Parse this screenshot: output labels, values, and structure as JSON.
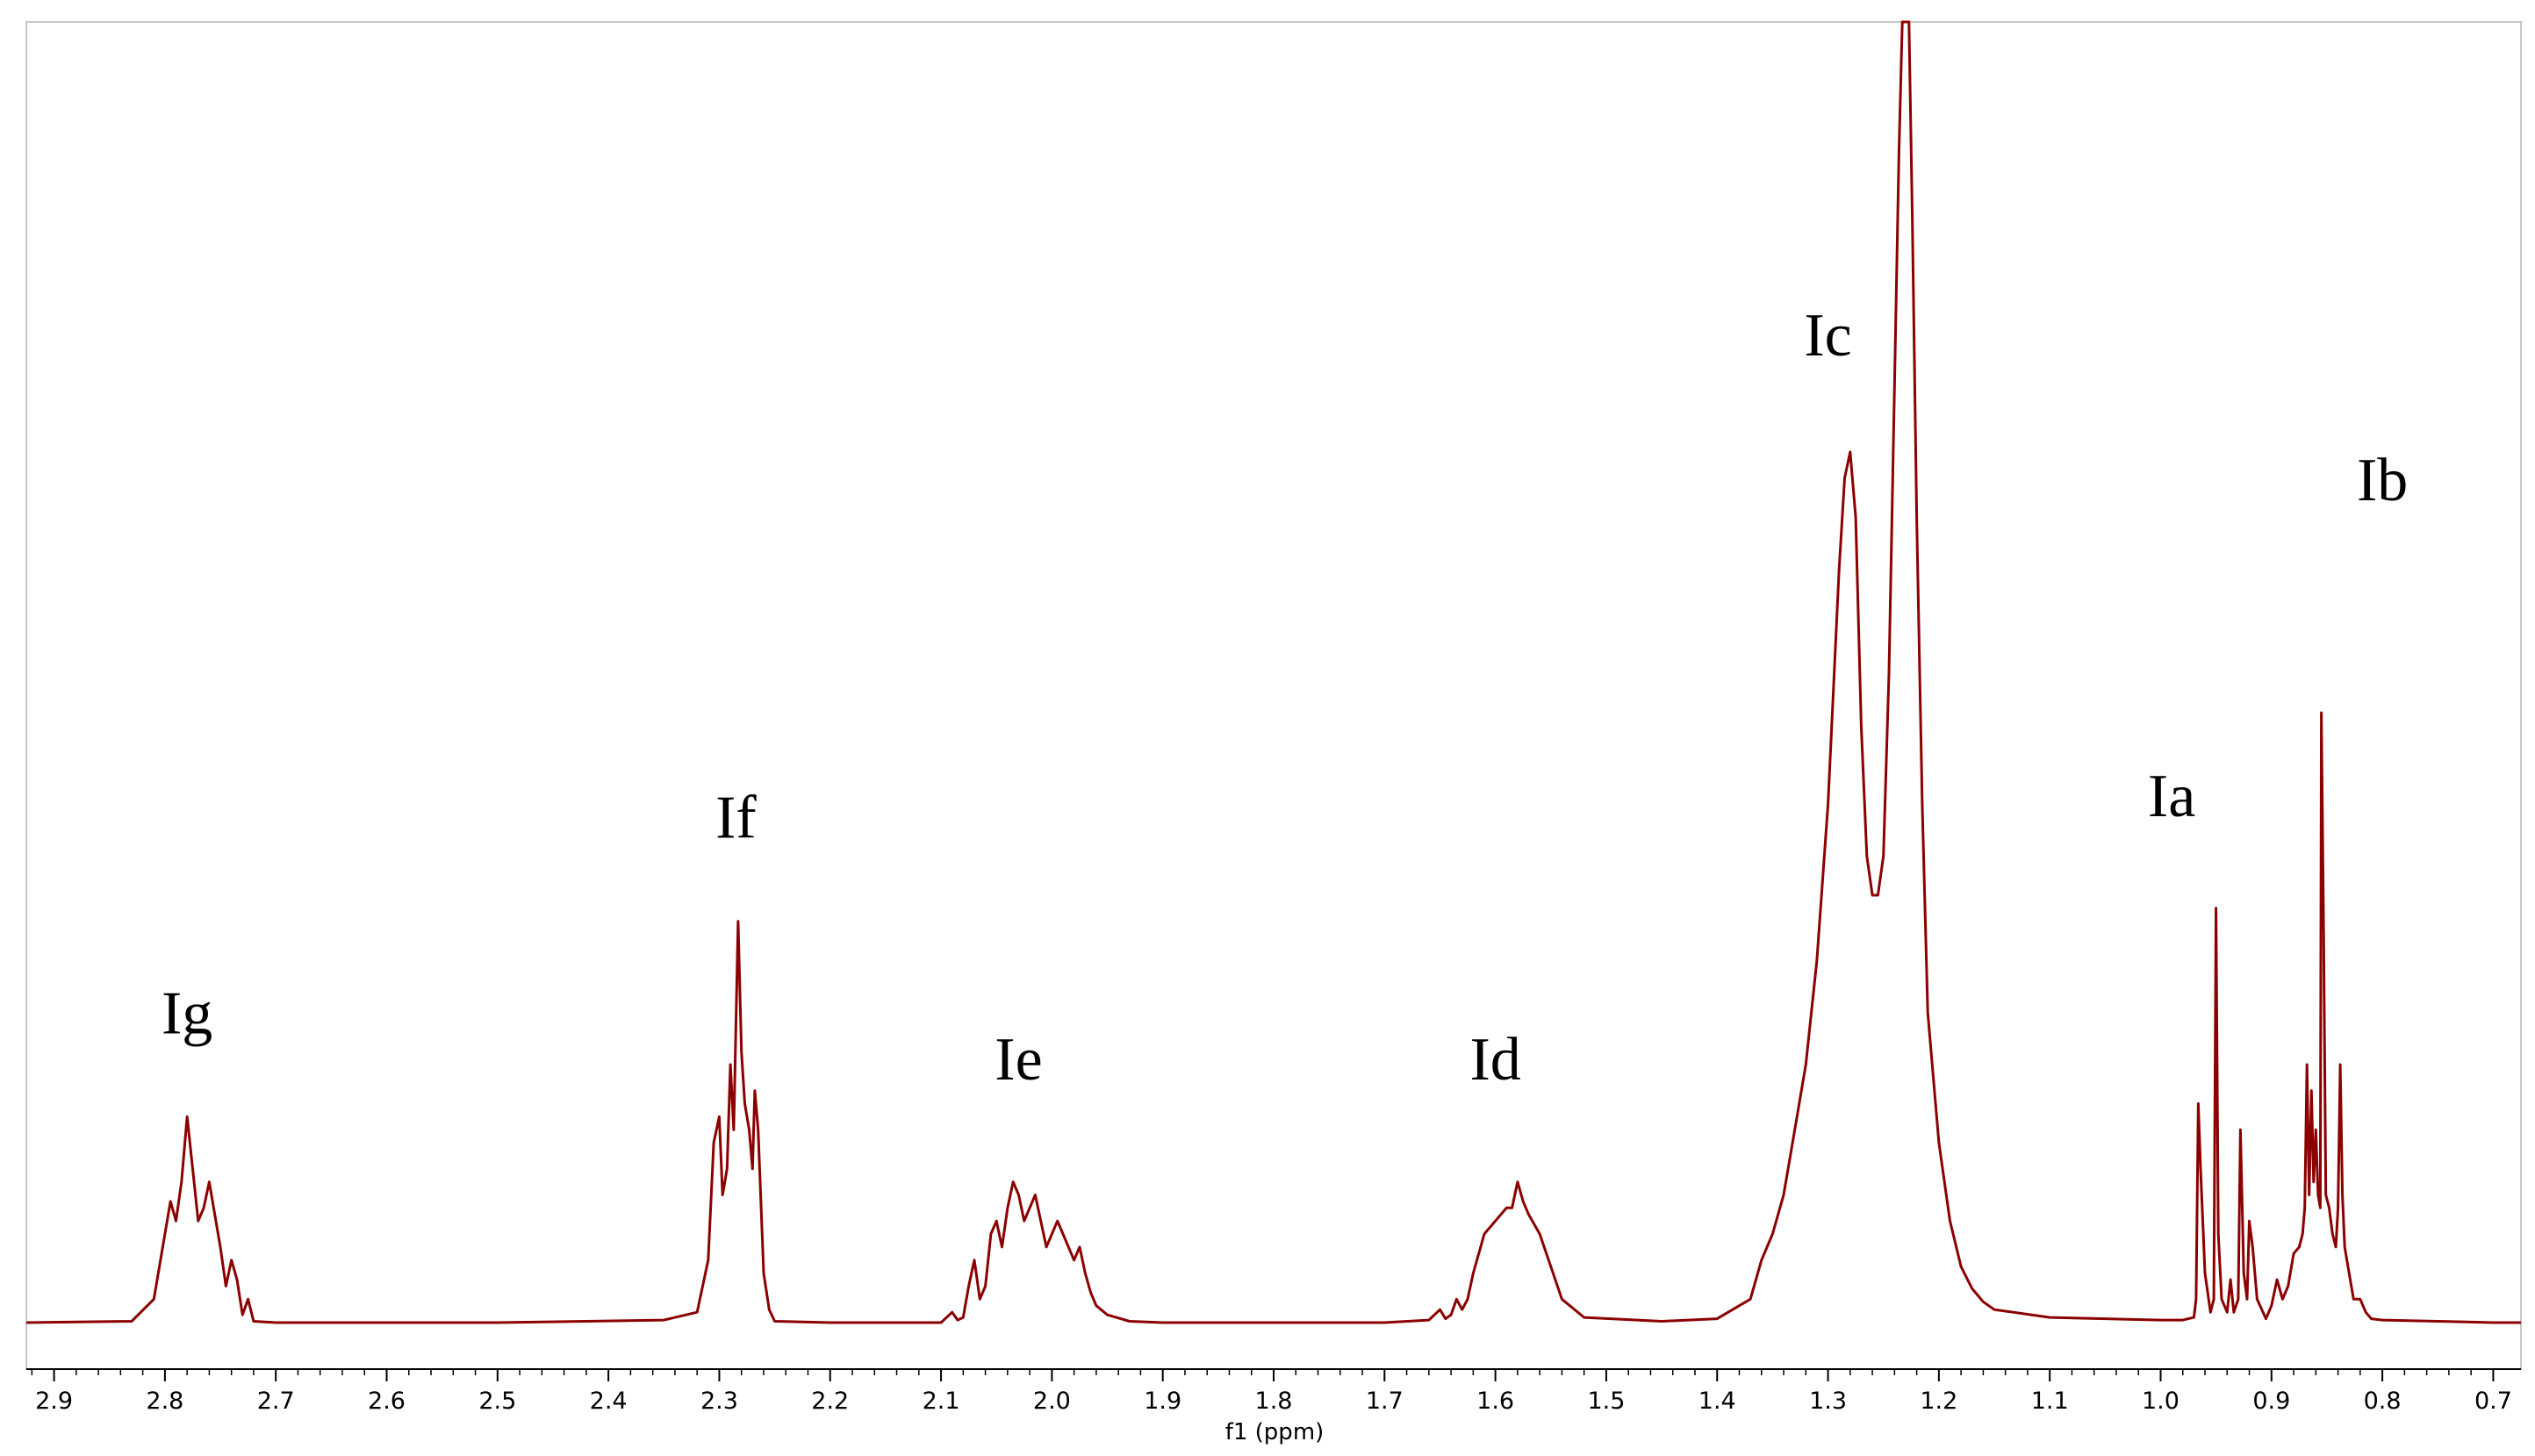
{
  "chart_data": {
    "type": "line",
    "xlabel": "f1 (ppm)",
    "ylabel": "",
    "x_axis_reversed": true,
    "xlim": [
      2.925,
      0.675
    ],
    "x_tick_labels": [
      "2.9",
      "2.8",
      "2.7",
      "2.6",
      "2.5",
      "2.4",
      "2.3",
      "2.2",
      "2.1",
      "2.0",
      "1.9",
      "1.8",
      "1.7",
      "1.6",
      "1.5",
      "1.4",
      "1.3",
      "1.2",
      "1.1",
      "1.0",
      "0.9",
      "0.8",
      "0.7"
    ],
    "x_ticks": [
      2.9,
      2.8,
      2.7,
      2.6,
      2.5,
      2.4,
      2.3,
      2.2,
      2.1,
      2.0,
      1.9,
      1.8,
      1.7,
      1.6,
      1.5,
      1.4,
      1.3,
      1.2,
      1.1,
      1.0,
      0.9,
      0.8,
      0.7
    ],
    "grid": false,
    "line_color": "#8b0000",
    "series": [
      {
        "values_note": "relative intensity (0..1) at chemical shift (ppm)",
        "x": [
          2.925,
          2.83,
          2.81,
          2.8,
          2.795,
          2.79,
          2.785,
          2.78,
          2.775,
          2.77,
          2.765,
          2.76,
          2.75,
          2.745,
          2.74,
          2.735,
          2.73,
          2.725,
          2.72,
          2.7,
          2.5,
          2.35,
          2.32,
          2.31,
          2.305,
          2.3,
          2.297,
          2.293,
          2.29,
          2.287,
          2.283,
          2.28,
          2.277,
          2.273,
          2.27,
          2.268,
          2.265,
          2.26,
          2.255,
          2.25,
          2.2,
          2.1,
          2.09,
          2.085,
          2.08,
          2.075,
          2.07,
          2.065,
          2.06,
          2.055,
          2.05,
          2.045,
          2.04,
          2.035,
          2.03,
          2.025,
          2.02,
          2.015,
          2.01,
          2.005,
          2.0,
          1.995,
          1.99,
          1.985,
          1.98,
          1.975,
          1.97,
          1.965,
          1.96,
          1.95,
          1.93,
          1.9,
          1.7,
          1.66,
          1.65,
          1.645,
          1.64,
          1.635,
          1.63,
          1.625,
          1.62,
          1.61,
          1.6,
          1.59,
          1.585,
          1.58,
          1.575,
          1.57,
          1.56,
          1.55,
          1.54,
          1.52,
          1.45,
          1.4,
          1.37,
          1.36,
          1.35,
          1.34,
          1.33,
          1.32,
          1.31,
          1.3,
          1.29,
          1.285,
          1.28,
          1.275,
          1.27,
          1.265,
          1.26,
          1.255,
          1.25,
          1.245,
          1.24,
          1.236,
          1.233,
          1.23,
          1.227,
          1.224,
          1.22,
          1.215,
          1.21,
          1.2,
          1.19,
          1.18,
          1.17,
          1.16,
          1.15,
          1.1,
          1.05,
          1.0,
          0.98,
          0.97,
          0.968,
          0.966,
          0.964,
          0.96,
          0.955,
          0.952,
          0.95,
          0.948,
          0.945,
          0.94,
          0.937,
          0.934,
          0.93,
          0.928,
          0.925,
          0.922,
          0.92,
          0.917,
          0.913,
          0.905,
          0.9,
          0.895,
          0.89,
          0.885,
          0.88,
          0.875,
          0.872,
          0.87,
          0.868,
          0.866,
          0.864,
          0.862,
          0.86,
          0.858,
          0.856,
          0.855,
          0.853,
          0.851,
          0.848,
          0.845,
          0.842,
          0.84,
          0.838,
          0.836,
          0.834,
          0.83,
          0.826,
          0.82,
          0.815,
          0.81,
          0.8,
          0.75,
          0.7,
          0.675
        ],
        "y": [
          0.002,
          0.003,
          0.02,
          0.07,
          0.095,
          0.08,
          0.11,
          0.16,
          0.12,
          0.08,
          0.09,
          0.11,
          0.06,
          0.03,
          0.05,
          0.035,
          0.008,
          0.02,
          0.003,
          0.002,
          0.002,
          0.004,
          0.01,
          0.05,
          0.14,
          0.16,
          0.1,
          0.12,
          0.2,
          0.15,
          0.31,
          0.21,
          0.17,
          0.15,
          0.12,
          0.18,
          0.15,
          0.04,
          0.012,
          0.003,
          0.002,
          0.002,
          0.01,
          0.004,
          0.006,
          0.03,
          0.05,
          0.02,
          0.03,
          0.07,
          0.08,
          0.06,
          0.09,
          0.11,
          0.1,
          0.08,
          0.09,
          0.1,
          0.08,
          0.06,
          0.07,
          0.08,
          0.07,
          0.06,
          0.05,
          0.06,
          0.04,
          0.025,
          0.015,
          0.008,
          0.003,
          0.002,
          0.002,
          0.004,
          0.012,
          0.005,
          0.008,
          0.02,
          0.012,
          0.02,
          0.04,
          0.07,
          0.08,
          0.09,
          0.09,
          0.11,
          0.095,
          0.085,
          0.07,
          0.045,
          0.02,
          0.006,
          0.003,
          0.005,
          0.02,
          0.05,
          0.07,
          0.1,
          0.15,
          0.2,
          0.28,
          0.4,
          0.58,
          0.65,
          0.67,
          0.62,
          0.46,
          0.36,
          0.33,
          0.33,
          0.36,
          0.5,
          0.72,
          0.9,
          1.0,
          1.0,
          1.0,
          0.85,
          0.62,
          0.4,
          0.24,
          0.14,
          0.08,
          0.045,
          0.028,
          0.018,
          0.012,
          0.006,
          0.005,
          0.004,
          0.004,
          0.006,
          0.02,
          0.17,
          0.12,
          0.04,
          0.01,
          0.02,
          0.32,
          0.07,
          0.02,
          0.01,
          0.035,
          0.01,
          0.02,
          0.15,
          0.04,
          0.02,
          0.08,
          0.06,
          0.02,
          0.005,
          0.015,
          0.035,
          0.02,
          0.03,
          0.055,
          0.06,
          0.07,
          0.09,
          0.2,
          0.1,
          0.18,
          0.11,
          0.15,
          0.1,
          0.09,
          0.47,
          0.3,
          0.1,
          0.09,
          0.07,
          0.06,
          0.09,
          0.2,
          0.1,
          0.06,
          0.04,
          0.02,
          0.02,
          0.01,
          0.005,
          0.004,
          0.003,
          0.002,
          0.002
        ],
        "y_max": 1.0
      }
    ],
    "annotations": [
      {
        "text": "Ig",
        "x": 2.78
      },
      {
        "text": "If",
        "x": 2.285
      },
      {
        "text": "Ie",
        "x": 2.03
      },
      {
        "text": "Id",
        "x": 1.6
      },
      {
        "text": "Ic",
        "x": 1.3
      },
      {
        "text": "Ia",
        "x": 0.99
      },
      {
        "text": "Ib",
        "x": 0.8
      }
    ]
  }
}
